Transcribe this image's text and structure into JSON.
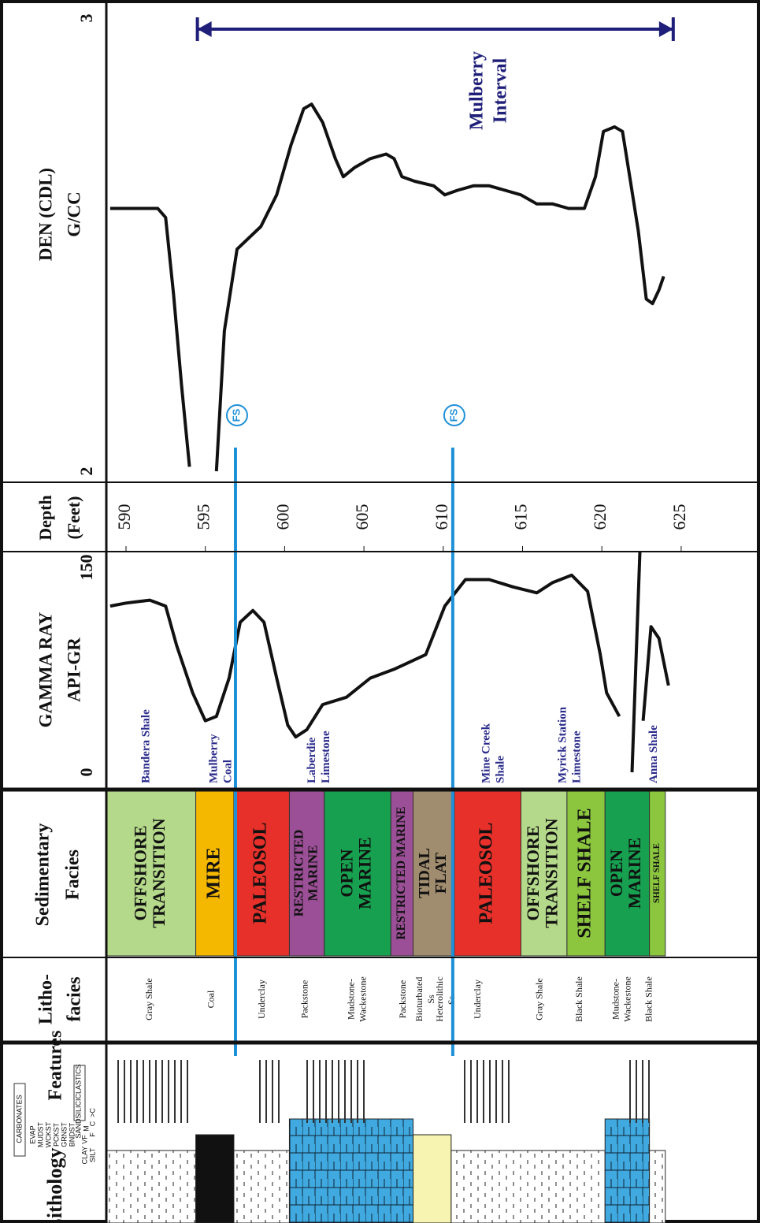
{
  "chart_data": {
    "type": "well-log",
    "headers": {
      "lithology": "Lithology",
      "features": "Features",
      "lithofacies": [
        "Litho-",
        "facies"
      ],
      "sedimentary_facies": [
        "Sedimentary",
        "Facies"
      ],
      "gamma_ray": [
        "GAMMA RAY",
        "API-GR"
      ],
      "depth": [
        "Depth",
        "(Feet)"
      ],
      "density": [
        "DEN (CDL)",
        "G/CC"
      ]
    },
    "legend_texts": [
      "CARBONATES",
      "EVAP",
      "MUDST",
      "WCKST",
      "PCKST",
      "GRNST",
      "BNDST",
      "SILICICLASTICS",
      "CLAY",
      "SILT",
      "VF",
      "F",
      "M",
      "C",
      ">C",
      "SAND"
    ],
    "depth_ticks": [
      590,
      595,
      600,
      605,
      610,
      615,
      620,
      625
    ],
    "depth_lim": [
      588.8,
      624.8
    ],
    "gamma_ray": {
      "xlim": [
        0,
        150
      ],
      "color": "#111111",
      "depth": [
        589.0,
        590.0,
        591.5,
        592.5,
        593.2,
        594.2,
        595.0,
        595.7,
        596.5,
        597.2,
        598.0,
        598.7,
        599.5,
        600.2,
        600.7,
        601.4,
        602.4,
        603.9,
        605.4,
        606.9,
        608.9,
        610.1,
        611.4,
        612.9,
        614.4,
        615.9,
        616.9,
        618.1,
        619.1,
        619.9,
        620.3,
        621.1,
        null,
        621.9,
        622.4,
        null,
        622.6,
        623.1,
        623.6,
        624.2
      ],
      "values": [
        113,
        115,
        117,
        113,
        86,
        54,
        35,
        38,
        64,
        102,
        110,
        102,
        64,
        32,
        24,
        29,
        46,
        51,
        64,
        70,
        80,
        113,
        131,
        131,
        126,
        122,
        129,
        134,
        123,
        80,
        54,
        38,
        null,
        0,
        150,
        null,
        35,
        99,
        91,
        59
      ]
    },
    "density": {
      "xlim": [
        2,
        3
      ],
      "color": "#111111",
      "depth": [
        589.0,
        590.0,
        590.7,
        592.0,
        592.5,
        593.0,
        593.5,
        594.0,
        null,
        595.7,
        596.2,
        597.0,
        598.5,
        599.5,
        600.4,
        601.2,
        601.7,
        602.4,
        603.2,
        603.7,
        604.4,
        605.4,
        606.4,
        606.9,
        607.4,
        608.2,
        609.4,
        610.1,
        610.9,
        611.9,
        612.9,
        613.9,
        614.9,
        615.9,
        616.9,
        617.9,
        618.9,
        619.6,
        620.1,
        620.8,
        621.3,
        621.8,
        622.3,
        622.8,
        623.2,
        623.6,
        623.9
      ],
      "values": [
        2.58,
        2.58,
        2.58,
        2.58,
        2.56,
        2.39,
        2.19,
        2.01,
        null,
        2.0,
        2.31,
        2.49,
        2.54,
        2.61,
        2.72,
        2.8,
        2.81,
        2.77,
        2.69,
        2.65,
        2.67,
        2.69,
        2.7,
        2.69,
        2.65,
        2.64,
        2.63,
        2.61,
        2.62,
        2.63,
        2.63,
        2.62,
        2.61,
        2.59,
        2.59,
        2.58,
        2.58,
        2.65,
        2.75,
        2.76,
        2.75,
        2.64,
        2.53,
        2.38,
        2.37,
        2.4,
        2.43
      ]
    },
    "interval": {
      "label": [
        "Mulberry",
        "Interval"
      ],
      "top": 594.5,
      "base": 624.5,
      "color": "#1f1f7a"
    },
    "flooding_surfaces": [
      {
        "label": "FS",
        "depth": 597.0
      },
      {
        "label": "FS",
        "depth": 610.7
      }
    ],
    "fs_color": "#1e90d8",
    "formations": [
      {
        "lines": [
          "Bandera Shale"
        ],
        "depth": 591.3
      },
      {
        "lines": [
          "Mulberry",
          "Coal"
        ],
        "depth": 596.0
      },
      {
        "lines": [
          "Laberdie",
          "Limestone"
        ],
        "depth": 602.2
      },
      {
        "lines": [
          "Mine Creek",
          "Shale"
        ],
        "depth": 613.2
      },
      {
        "lines": [
          "Myrick Station",
          "Limestone"
        ],
        "depth": 618.0
      },
      {
        "lines": [
          "Anna Shale"
        ],
        "depth": 623.3
      }
    ],
    "formation_color": "#2b2b8c",
    "facies": [
      {
        "lines": [
          "OFFSHORE",
          "TRANSITION"
        ],
        "top": 588.8,
        "base": 594.4,
        "color": "#b5d98a"
      },
      {
        "lines": [
          "MIRE"
        ],
        "top": 594.4,
        "base": 596.8,
        "color": "#f5b800"
      },
      {
        "lines": [
          "PALEOSOL"
        ],
        "top": 596.8,
        "base": 600.3,
        "color": "#e8302a"
      },
      {
        "lines": [
          "RESTRICTED",
          "MARINE"
        ],
        "top": 600.3,
        "base": 602.5,
        "color": "#9b4f96"
      },
      {
        "lines": [
          "OPEN",
          "MARINE"
        ],
        "top": 602.5,
        "base": 606.7,
        "color": "#17a050"
      },
      {
        "lines": [
          "RESTRICTED MARINE"
        ],
        "top": 606.7,
        "base": 608.1,
        "color": "#9b4f96"
      },
      {
        "lines": [
          "TIDAL",
          "FLAT"
        ],
        "top": 608.1,
        "base": 610.7,
        "color": "#a08c6e"
      },
      {
        "lines": [
          "PALEOSOL"
        ],
        "top": 610.7,
        "base": 614.9,
        "color": "#e8302a"
      },
      {
        "lines": [
          "OFFSHORE",
          "TRANSITION"
        ],
        "top": 614.9,
        "base": 617.8,
        "color": "#b5d98a"
      },
      {
        "lines": [
          "SHELF SHALE"
        ],
        "top": 617.8,
        "base": 620.2,
        "color": "#8cc63f"
      },
      {
        "lines": [
          "OPEN",
          "MARINE"
        ],
        "top": 620.2,
        "base": 623.0,
        "color": "#17a050"
      },
      {
        "lines": [
          "SHELF SHALE"
        ],
        "top": 623.0,
        "base": 624.0,
        "color": "#8cc63f"
      }
    ],
    "lithofacies": [
      {
        "lines": [
          "Gray Shale"
        ],
        "depth": 591.5
      },
      {
        "lines": [
          "Coal"
        ],
        "depth": 595.4
      },
      {
        "lines": [
          "Underclay"
        ],
        "depth": 598.6
      },
      {
        "lines": [
          "Packstone"
        ],
        "depth": 601.3
      },
      {
        "lines": [
          "Mudstone-",
          "Wackestone"
        ],
        "depth": 604.6
      },
      {
        "lines": [
          "Packstone"
        ],
        "depth": 607.5
      },
      {
        "lines": [
          "Bioturbated",
          "Ss"
        ],
        "depth": 608.9
      },
      {
        "lines": [
          "Heterolithic",
          "Ss."
        ],
        "depth": 610.2
      },
      {
        "lines": [
          "Underclay"
        ],
        "depth": 612.2
      },
      {
        "lines": [
          "Gray Shale"
        ],
        "depth": 616.1
      },
      {
        "lines": [
          "Black Shale"
        ],
        "depth": 618.6
      },
      {
        "lines": [
          "Mudstone-",
          "Wackestone"
        ],
        "depth": 621.3
      },
      {
        "lines": [
          "Black Shale"
        ],
        "depth": 623.0
      }
    ],
    "lithology": [
      {
        "top": 588.8,
        "base": 594.4,
        "color": "shale"
      },
      {
        "top": 594.4,
        "base": 596.8,
        "color": "#111111"
      },
      {
        "top": 596.8,
        "base": 600.3,
        "color": "shale"
      },
      {
        "top": 600.3,
        "base": 608.1,
        "color": "lime"
      },
      {
        "top": 608.1,
        "base": 610.5,
        "color": "#f7f3b0"
      },
      {
        "top": 610.5,
        "base": 620.2,
        "color": "shale"
      },
      {
        "top": 620.2,
        "base": 623.0,
        "color": "lime"
      },
      {
        "top": 623.0,
        "base": 624.0,
        "color": "shale"
      }
    ]
  }
}
